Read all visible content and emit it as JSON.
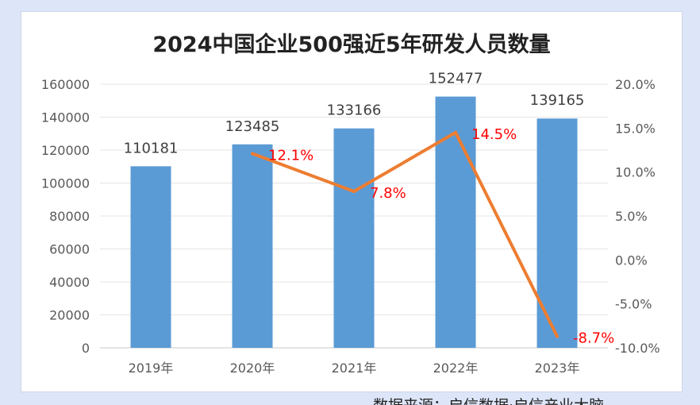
{
  "chart_data": {
    "type": "bar",
    "title": "2024中国企业500强近5年研发人员数量",
    "categories": [
      "2019年",
      "2020年",
      "2021年",
      "2022年",
      "2023年"
    ],
    "series": [
      {
        "type": "bar",
        "values": [
          110181,
          123485,
          133166,
          152477,
          139165
        ],
        "value_labels": [
          "110181",
          "123485",
          "133166",
          "152477",
          "139165"
        ],
        "color": "#5b9bd5",
        "axis": "left"
      },
      {
        "type": "line",
        "x": [
          "2020年",
          "2021年",
          "2022年",
          "2023年"
        ],
        "values": [
          12.1,
          7.8,
          14.5,
          -8.7
        ],
        "value_labels": [
          "12.1%",
          "7.8%",
          "14.5%",
          "-8.7%"
        ],
        "color": "#ed7d31",
        "label_color": "#ff0000",
        "axis": "right"
      }
    ],
    "y_left": {
      "ylim": [
        0,
        160000
      ],
      "ticks": [
        0,
        20000,
        40000,
        60000,
        80000,
        100000,
        120000,
        140000,
        160000
      ],
      "tick_labels": [
        "0",
        "20000",
        "40000",
        "60000",
        "80000",
        "100000",
        "120000",
        "140000",
        "160000"
      ]
    },
    "y_right": {
      "ylim": [
        -10,
        20
      ],
      "ticks": [
        -10,
        -5,
        0,
        5,
        10,
        15,
        20
      ],
      "tick_labels": [
        "-10.0%",
        "-5.0%",
        "0.0%",
        "5.0%",
        "10.0%",
        "15.0%",
        "20.0%"
      ]
    },
    "grid": true,
    "legend": "none"
  },
  "source_note": "数据来源：启信数据·启信产业大脑"
}
